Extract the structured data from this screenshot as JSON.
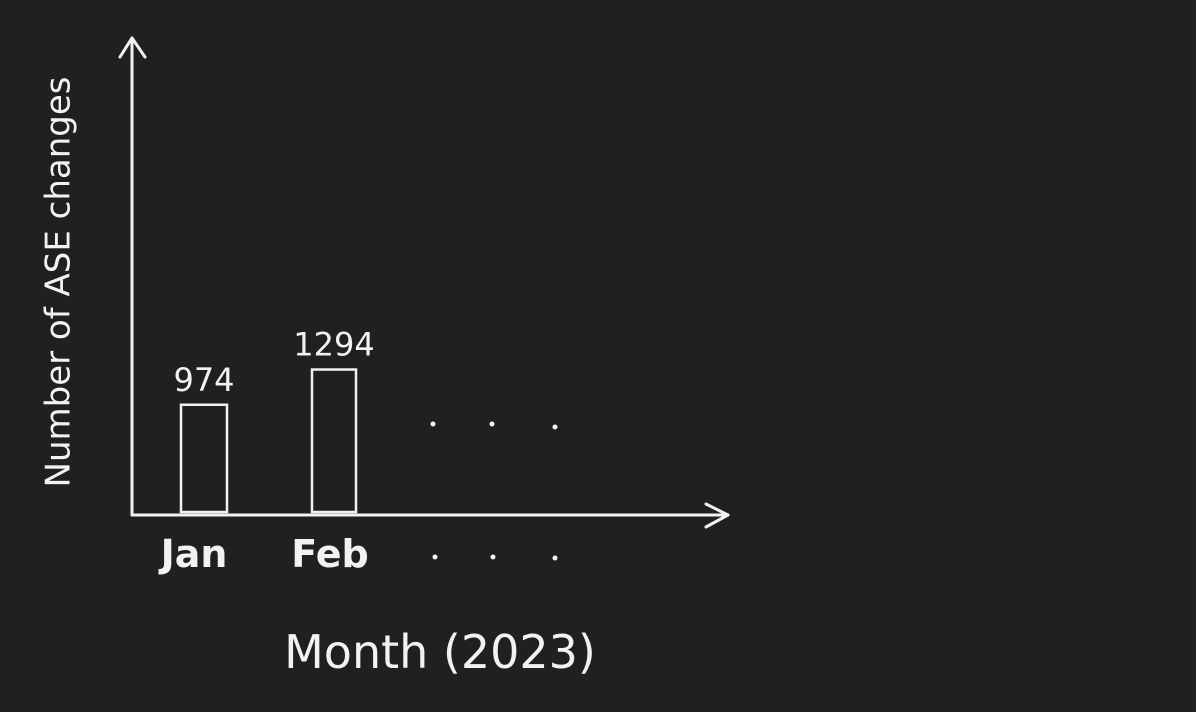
{
  "chart_data": {
    "type": "bar",
    "categories": [
      "Jan",
      "Feb"
    ],
    "values": [
      974,
      1294
    ],
    "xlabel": "Month (2023)",
    "ylabel": "Number of ASE changes",
    "continuation": "·  ·  ·",
    "grid": false,
    "colors": {
      "background": "#212020",
      "ink": "#f2f2f2"
    }
  }
}
